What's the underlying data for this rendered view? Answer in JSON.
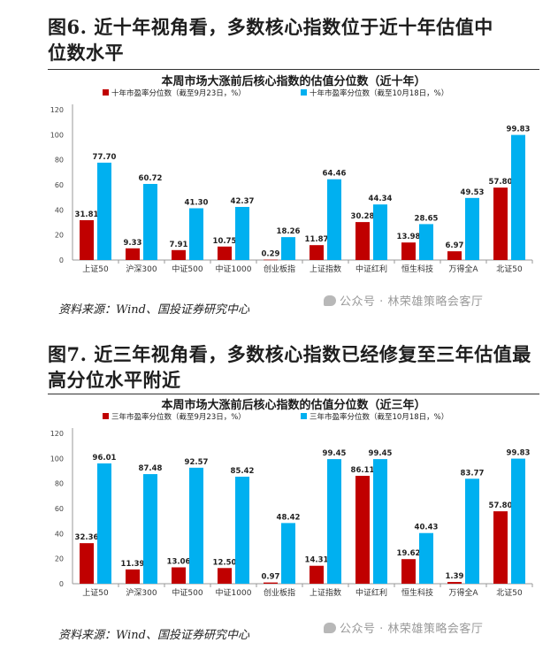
{
  "figures": [
    {
      "heading": "图6. 近十年视角看，多数核心指数位于近十年估值中位数水平",
      "heading_lines": [
        "图6. 近十年视角看，多数核心指数位于近十年估值中",
        "位数水平"
      ],
      "source": "资料来源：Wind、国投证券研究中心",
      "watermark": "公众号 · 林荣雄策略会客厅"
    },
    {
      "heading": "图7. 近三年视角看，多数核心指数已经修复至三年估值最高分位水平附近",
      "heading_lines": [
        "图7. 近三年视角看，多数核心指数已经修复至三年估值最",
        "高分位水平附近"
      ],
      "source": "资料来源：Wind、国投证券研究中心",
      "watermark": "公众号 · 林荣雄策略会客厅"
    }
  ],
  "colors": {
    "series_red": "#c00000",
    "series_blue": "#00b0f0",
    "axis": "#999999"
  },
  "chart_data": [
    {
      "type": "bar",
      "title": "本周市场大涨前后核心指数的估值分位数（近十年）",
      "categories": [
        "上证50",
        "沪深300",
        "中证500",
        "中证1000",
        "创业板指",
        "上证指数",
        "中证红利",
        "恒生科技",
        "万得全A",
        "北证50"
      ],
      "series": [
        {
          "name": "十年市盈率分位数（截至9月23日，%）",
          "values": [
            31.81,
            9.33,
            7.91,
            10.75,
            0.29,
            11.87,
            30.28,
            13.98,
            6.97,
            57.8
          ],
          "labels": [
            "31.81",
            "9.33",
            "7.91",
            "10.75",
            "0.29",
            "11.87",
            "30.28",
            "13.98",
            "6.97",
            "57.80"
          ]
        },
        {
          "name": "十年市盈率分位数（截至10月18日，%）",
          "values": [
            77.7,
            60.72,
            41.3,
            42.37,
            18.26,
            64.46,
            44.34,
            28.65,
            49.53,
            99.83
          ],
          "labels": [
            "77.70",
            "60.72",
            "41.30",
            "42.37",
            "18.26",
            "64.46",
            "44.34",
            "28.65",
            "49.53",
            "99.83"
          ]
        }
      ],
      "ylim": [
        0,
        120
      ],
      "yticks": [
        "0",
        "20",
        "40",
        "60",
        "80",
        "100",
        "120"
      ],
      "grid": false,
      "legend": "top-center"
    },
    {
      "type": "bar",
      "title": "本周市场大涨前后核心指数的估值分位数（近三年）",
      "categories": [
        "上证50",
        "沪深300",
        "中证500",
        "中证1000",
        "创业板指",
        "上证指数",
        "中证红利",
        "恒生科技",
        "万得全A",
        "北证50"
      ],
      "series": [
        {
          "name": "三年市盈率分位数（截至9月23日，%）",
          "values": [
            32.36,
            11.39,
            13.06,
            12.5,
            0.97,
            14.31,
            86.11,
            19.62,
            1.39,
            57.8
          ],
          "labels": [
            "32.36",
            "11.39",
            "13.06",
            "12.50",
            "0.97",
            "14.31",
            "86.11",
            "19.62",
            "1.39",
            "57.80"
          ]
        },
        {
          "name": "三年市盈率分位数（截至10月18日，%）",
          "values": [
            96.01,
            87.48,
            92.57,
            85.42,
            48.42,
            99.45,
            99.45,
            40.43,
            83.77,
            99.83
          ],
          "labels": [
            "96.01",
            "87.48",
            "92.57",
            "85.42",
            "48.42",
            "99.45",
            "99.45",
            "40.43",
            "83.77",
            "99.83"
          ]
        }
      ],
      "ylim": [
        0,
        120
      ],
      "yticks": [
        "0",
        "20",
        "40",
        "60",
        "80",
        "100",
        "120"
      ],
      "grid": false,
      "legend": "top-center"
    }
  ]
}
